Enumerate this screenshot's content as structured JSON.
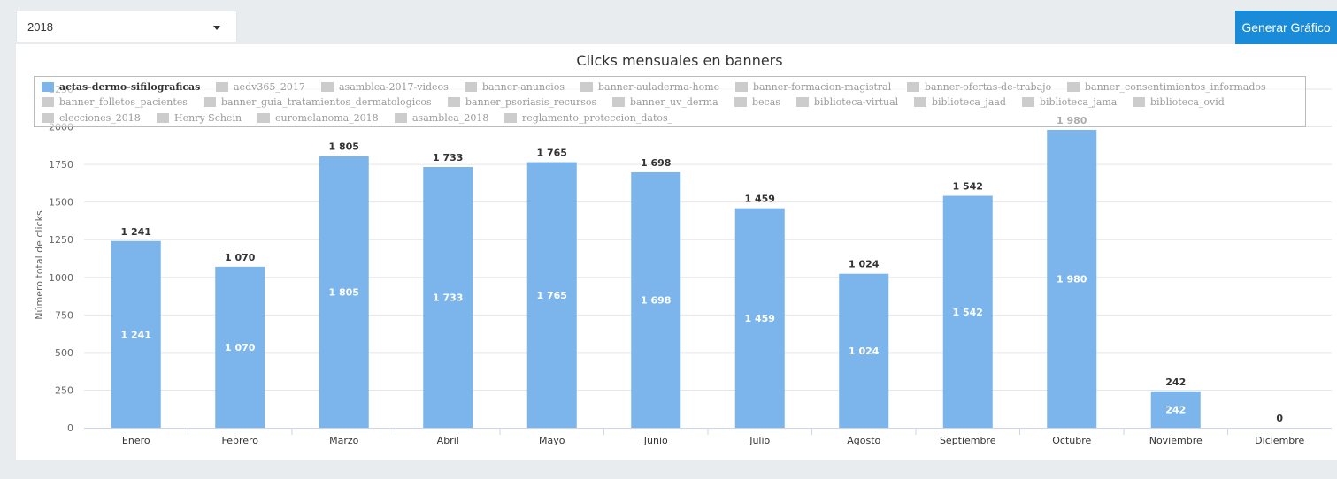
{
  "controls": {
    "year_select_value": "2018",
    "generate_button_label": "Generar Gráfico"
  },
  "colors": {
    "bar": "#7cb5ec",
    "button": "#1a8bd8",
    "legend_inactive": "#cccccc"
  },
  "chart_data": {
    "type": "bar",
    "title": "Clicks mensuales en banners",
    "xlabel": "",
    "ylabel": "Número total de clicks",
    "ylim": [
      0,
      2250
    ],
    "yticks": [
      "0",
      "250",
      "500",
      "750",
      "1000",
      "1250",
      "1500",
      "1750",
      "2000",
      "2250"
    ],
    "grid": true,
    "legend_placement": "top",
    "categories": [
      "Enero",
      "Febrero",
      "Marzo",
      "Abril",
      "Mayo",
      "Junio",
      "Julio",
      "Agosto",
      "Septiembre",
      "Octubre",
      "Noviembre",
      "Diciembre"
    ],
    "series": [
      {
        "name": "actas-dermo-sifilograficas",
        "values": [
          1241,
          1070,
          1805,
          1733,
          1765,
          1698,
          1459,
          1024,
          1542,
          1980,
          242,
          0
        ],
        "labels": [
          "1 241",
          "1 070",
          "1 805",
          "1 733",
          "1 765",
          "1 698",
          "1 459",
          "1 024",
          "1 542",
          "1 980",
          "242",
          "0"
        ]
      }
    ],
    "legend": [
      {
        "name": "actas-dermo-sifilograficas",
        "active": true
      },
      {
        "name": "aedv365_2017",
        "active": false
      },
      {
        "name": "asamblea-2017-videos",
        "active": false
      },
      {
        "name": "banner-anuncios",
        "active": false
      },
      {
        "name": "banner-auladerma-home",
        "active": false
      },
      {
        "name": "banner-formacion-magistral",
        "active": false
      },
      {
        "name": "banner-ofertas-de-trabajo",
        "active": false
      },
      {
        "name": "banner_consentimientos_informados",
        "active": false
      },
      {
        "name": "banner_folletos_pacientes",
        "active": false
      },
      {
        "name": "banner_guia_tratamientos_dermatologicos",
        "active": false
      },
      {
        "name": "banner_psoriasis_recursos",
        "active": false
      },
      {
        "name": "banner_uv_derma",
        "active": false
      },
      {
        "name": "becas",
        "active": false
      },
      {
        "name": "biblioteca-virtual",
        "active": false
      },
      {
        "name": "biblioteca_jaad",
        "active": false
      },
      {
        "name": "biblioteca_jama",
        "active": false
      },
      {
        "name": "biblioteca_ovid",
        "active": false
      },
      {
        "name": "elecciones_2018",
        "active": false
      },
      {
        "name": "Henry Schein",
        "active": false
      },
      {
        "name": "euromelanoma_2018",
        "active": false
      },
      {
        "name": "asamblea_2018",
        "active": false
      },
      {
        "name": "reglamento_proteccion_datos_",
        "active": false
      }
    ]
  }
}
